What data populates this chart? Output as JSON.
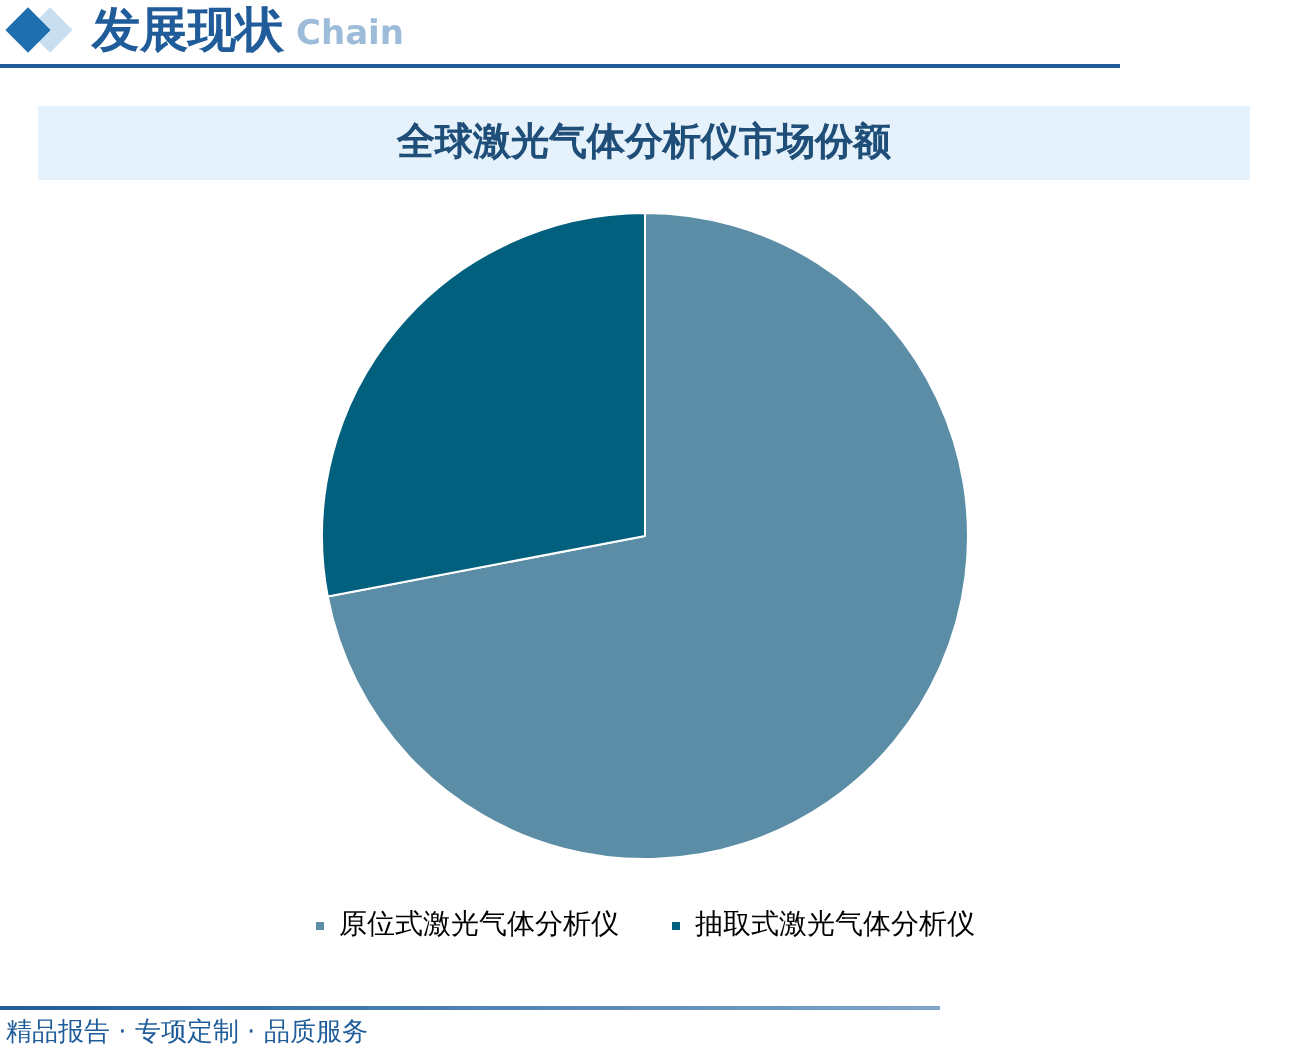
{
  "chart_data": {
    "type": "pie",
    "title": "全球激光气体分析仪市场份额",
    "annotations": [
      "发展现状",
      "Chain",
      "精品报告 · 专项定制 · 品质服务"
    ],
    "categories": [
      "原位式激光气体分析仪",
      "抽取式激光气体分析仪"
    ],
    "values": [
      72,
      28
    ],
    "colors": [
      "#5b8ea6",
      "#02607f"
    ],
    "legend": "bottom"
  }
}
